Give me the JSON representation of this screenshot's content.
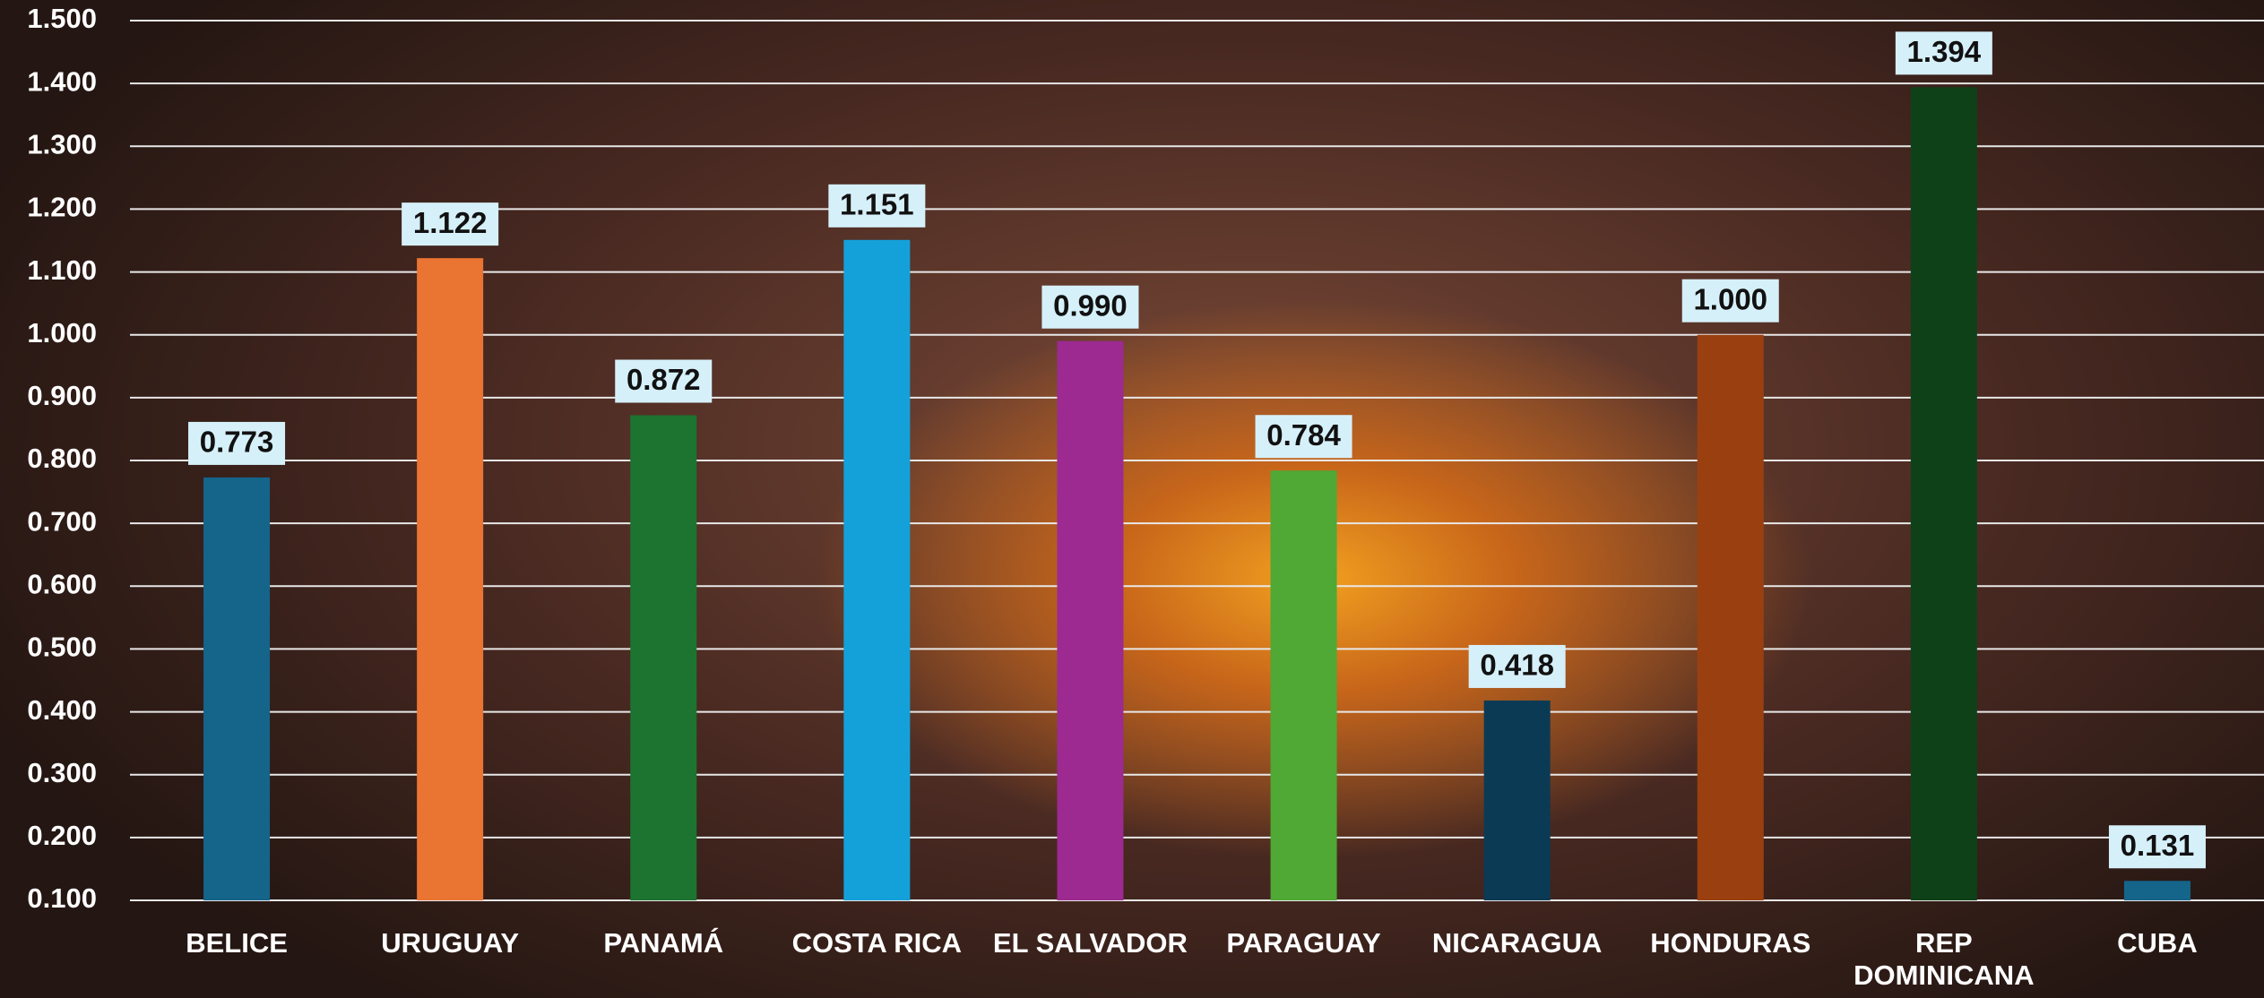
{
  "chart_data": {
    "type": "bar",
    "categories": [
      "BELICE",
      "URUGUAY",
      "PANAMÁ",
      "COSTA RICA",
      "EL SALVADOR",
      "PARAGUAY",
      "NICARAGUA",
      "HONDURAS",
      "REP DOMINICANA",
      "CUBA"
    ],
    "values": [
      0.773,
      1.122,
      0.872,
      1.151,
      0.99,
      0.784,
      0.418,
      1.0,
      1.394,
      0.131
    ],
    "value_labels": [
      "0.773",
      "1.122",
      "0.872",
      "1.151",
      "0.990",
      "0.784",
      "0.418",
      "1.000",
      "1.394",
      "0.131"
    ],
    "colors": [
      "#15648a",
      "#ea7432",
      "#1c7430",
      "#14a1da",
      "#9c2a91",
      "#4fa934",
      "#0b3a55",
      "#9a4010",
      "#0f4119",
      "#15648a"
    ],
    "ylim": [
      0.1,
      1.5
    ],
    "yticks": [
      {
        "value": 0.1,
        "label": "0.100"
      },
      {
        "value": 0.2,
        "label": "0.200"
      },
      {
        "value": 0.3,
        "label": "0.300"
      },
      {
        "value": 0.4,
        "label": "0.400"
      },
      {
        "value": 0.5,
        "label": "0.500"
      },
      {
        "value": 0.6,
        "label": "0.600"
      },
      {
        "value": 0.7,
        "label": "0.700"
      },
      {
        "value": 0.8,
        "label": "0.800"
      },
      {
        "value": 0.9,
        "label": "0.900"
      },
      {
        "value": 1.0,
        "label": "1.000"
      },
      {
        "value": 1.1,
        "label": "1.100"
      },
      {
        "value": 1.2,
        "label": "1.200"
      },
      {
        "value": 1.3,
        "label": "1.300"
      },
      {
        "value": 1.4,
        "label": "1.400"
      },
      {
        "value": 1.5,
        "label": "1.500"
      }
    ],
    "grid": true
  }
}
